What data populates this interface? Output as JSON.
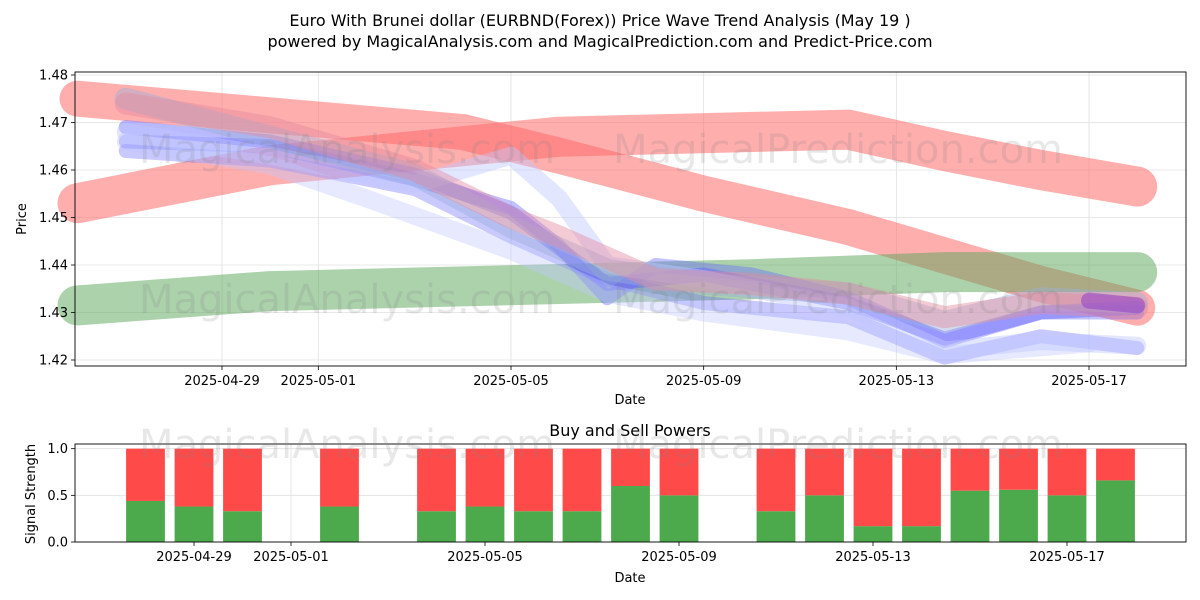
{
  "title_line1": "Euro With Brunei dollar (EURBND(Forex)) Price Wave Trend Analysis (May 19 )",
  "title_line2": "powered by MagicalAnalysis.com and MagicalPrediction.com and Predict-Price.com",
  "watermarks": [
    "MagicalAnalysis.com",
    "MagicalPrediction.com"
  ],
  "chart_data": [
    {
      "type": "area",
      "xlabel": "Date",
      "ylabel": "Price",
      "ylim": [
        1.419,
        1.481
      ],
      "xlim": [
        "2025-04-26",
        "2025-05-19"
      ],
      "grid": true,
      "x_ticks": [
        "2025-04-29",
        "2025-05-01",
        "2025-05-05",
        "2025-05-09",
        "2025-05-13",
        "2025-05-17"
      ],
      "y_ticks": [
        1.42,
        1.43,
        1.44,
        1.45,
        1.46,
        1.47,
        1.48
      ],
      "series": [
        {
          "color": "#ff6b6b",
          "points": [
            [
              "2025-04-26",
              1.475
            ],
            [
              "2025-05-04",
              1.468
            ],
            [
              "2025-05-06",
              1.463
            ],
            [
              "2025-05-09",
              1.455
            ],
            [
              "2025-05-12",
              1.448
            ],
            [
              "2025-05-16",
              1.436
            ],
            [
              "2025-05-18",
              1.431
            ]
          ]
        },
        {
          "color": "#ff6b6b",
          "points": [
            [
              "2025-04-26",
              1.453
            ],
            [
              "2025-04-30",
              1.461
            ],
            [
              "2025-05-06",
              1.467
            ],
            [
              "2025-05-12",
              1.4685
            ],
            [
              "2025-05-14",
              1.464
            ],
            [
              "2025-05-16",
              1.46
            ],
            [
              "2025-05-18",
              1.4565
            ]
          ]
        },
        {
          "color": "#5aa55a",
          "points": [
            [
              "2025-04-26",
              1.4315
            ],
            [
              "2025-04-30",
              1.4345
            ],
            [
              "2025-05-06",
              1.436
            ],
            [
              "2025-05-10",
              1.437
            ],
            [
              "2025-05-14",
              1.4385
            ],
            [
              "2025-05-18",
              1.4385
            ]
          ]
        },
        {
          "color": "#6464ff",
          "points": [
            [
              "2025-04-27",
              1.469
            ],
            [
              "2025-04-30",
              1.466
            ],
            [
              "2025-05-03",
              1.459
            ],
            [
              "2025-05-05",
              1.451
            ],
            [
              "2025-05-07",
              1.436
            ],
            [
              "2025-05-09",
              1.438
            ],
            [
              "2025-05-11",
              1.434
            ],
            [
              "2025-05-12",
              1.432
            ],
            [
              "2025-05-14",
              1.4245
            ],
            [
              "2025-05-16",
              1.43
            ],
            [
              "2025-05-18",
              1.431
            ]
          ]
        },
        {
          "color": "#6464ff",
          "points": [
            [
              "2025-04-27",
              1.466
            ],
            [
              "2025-04-30",
              1.465
            ],
            [
              "2025-05-03",
              1.458
            ],
            [
              "2025-05-05",
              1.452
            ],
            [
              "2025-05-06",
              1.444
            ],
            [
              "2025-05-07",
              1.433
            ],
            [
              "2025-05-08",
              1.44
            ],
            [
              "2025-05-10",
              1.438
            ],
            [
              "2025-05-12",
              1.433
            ],
            [
              "2025-05-14",
              1.424
            ],
            [
              "2025-05-16",
              1.43
            ],
            [
              "2025-05-18",
              1.43
            ]
          ]
        },
        {
          "color": "#6464ff",
          "points": [
            [
              "2025-04-27",
              1.464
            ],
            [
              "2025-04-30",
              1.462
            ],
            [
              "2025-05-03",
              1.456
            ],
            [
              "2025-05-05",
              1.446
            ],
            [
              "2025-05-07",
              1.437
            ],
            [
              "2025-05-09",
              1.432
            ],
            [
              "2025-05-12",
              1.429
            ],
            [
              "2025-05-14",
              1.4205
            ],
            [
              "2025-05-16",
              1.425
            ],
            [
              "2025-05-18",
              1.4225
            ]
          ]
        },
        {
          "color": "#c0c8ff",
          "points": [
            [
              "2025-04-27",
              1.468
            ],
            [
              "2025-04-30",
              1.463
            ],
            [
              "2025-05-03",
              1.457
            ],
            [
              "2025-05-05",
              1.463
            ],
            [
              "2025-05-06",
              1.454
            ],
            [
              "2025-05-07",
              1.44
            ],
            [
              "2025-05-09",
              1.437
            ],
            [
              "2025-05-12",
              1.431
            ],
            [
              "2025-05-14",
              1.422
            ],
            [
              "2025-05-16",
              1.424
            ],
            [
              "2025-05-18",
              1.423
            ]
          ]
        },
        {
          "color": "#c0c8ff",
          "points": [
            [
              "2025-04-27",
              1.466
            ],
            [
              "2025-04-30",
              1.461
            ],
            [
              "2025-05-02",
              1.454
            ],
            [
              "2025-05-05",
              1.443
            ],
            [
              "2025-05-07",
              1.434
            ],
            [
              "2025-05-09",
              1.43
            ],
            [
              "2025-05-12",
              1.426
            ],
            [
              "2025-05-14",
              1.421
            ],
            [
              "2025-05-17",
              1.4235
            ]
          ]
        },
        {
          "color": "#9bb0d8",
          "points": [
            [
              "2025-04-27",
              1.475
            ],
            [
              "2025-04-30",
              1.467
            ],
            [
              "2025-05-03",
              1.459
            ],
            [
              "2025-05-05",
              1.448
            ],
            [
              "2025-05-07",
              1.439
            ],
            [
              "2025-05-09",
              1.436
            ],
            [
              "2025-05-12",
              1.434
            ],
            [
              "2025-05-14",
              1.428
            ],
            [
              "2025-05-16",
              1.433
            ],
            [
              "2025-05-18",
              1.432
            ]
          ]
        },
        {
          "color": "#e58ca0",
          "points": [
            [
              "2025-04-27",
              1.474
            ],
            [
              "2025-04-30",
              1.469
            ],
            [
              "2025-05-03",
              1.46
            ],
            [
              "2025-05-05",
              1.45
            ],
            [
              "2025-05-06",
              1.446
            ],
            [
              "2025-05-08",
              1.437
            ],
            [
              "2025-05-10",
              1.436
            ],
            [
              "2025-05-12",
              1.434
            ],
            [
              "2025-05-14",
              1.429
            ],
            [
              "2025-05-16",
              1.432
            ],
            [
              "2025-05-18",
              1.431
            ]
          ]
        },
        {
          "color": "#9646c8",
          "points": [
            [
              "2025-05-17",
              1.4325
            ],
            [
              "2025-05-18",
              1.4315
            ]
          ]
        }
      ]
    },
    {
      "type": "bar",
      "title": "Buy and Sell Powers",
      "xlabel": "Date",
      "ylabel": "Signal Strength",
      "ylim": [
        0,
        1.05
      ],
      "y_ticks": [
        0.0,
        0.5,
        1.0
      ],
      "x_ticks": [
        "2025-04-29",
        "2025-05-01",
        "2025-05-05",
        "2025-05-09",
        "2025-05-13",
        "2025-05-17"
      ],
      "buy_color": "#4caa4c",
      "sell_color": "#ff4a4a",
      "bars": [
        {
          "x": "2025-04-28",
          "buy": 0.44,
          "sell": 0.56
        },
        {
          "x": "2025-04-29",
          "buy": 0.38,
          "sell": 0.62
        },
        {
          "x": "2025-04-30",
          "buy": 0.33,
          "sell": 0.67
        },
        {
          "x": "2025-05-02",
          "buy": 0.38,
          "sell": 0.62
        },
        {
          "x": "2025-05-04",
          "buy": 0.33,
          "sell": 0.67
        },
        {
          "x": "2025-05-05",
          "buy": 0.38,
          "sell": 0.62
        },
        {
          "x": "2025-05-06",
          "buy": 0.33,
          "sell": 0.67
        },
        {
          "x": "2025-05-07",
          "buy": 0.33,
          "sell": 0.67
        },
        {
          "x": "2025-05-08",
          "buy": 0.6,
          "sell": 0.4
        },
        {
          "x": "2025-05-09",
          "buy": 0.5,
          "sell": 0.5
        },
        {
          "x": "2025-05-11",
          "buy": 0.33,
          "sell": 0.67
        },
        {
          "x": "2025-05-12",
          "buy": 0.5,
          "sell": 0.5
        },
        {
          "x": "2025-05-13",
          "buy": 0.17,
          "sell": 0.83
        },
        {
          "x": "2025-05-14",
          "buy": 0.17,
          "sell": 0.83
        },
        {
          "x": "2025-05-15",
          "buy": 0.55,
          "sell": 0.45
        },
        {
          "x": "2025-05-16",
          "buy": 0.56,
          "sell": 0.44
        },
        {
          "x": "2025-05-17",
          "buy": 0.5,
          "sell": 0.5
        },
        {
          "x": "2025-05-18",
          "buy": 0.66,
          "sell": 0.34
        }
      ]
    }
  ]
}
